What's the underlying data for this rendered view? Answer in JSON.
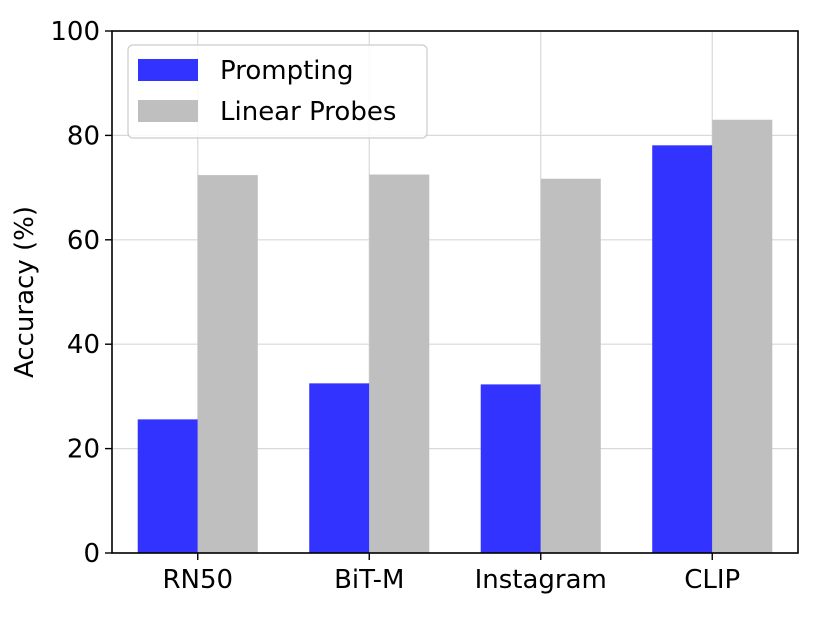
{
  "chart_data": {
    "type": "bar",
    "categories": [
      "RN50",
      "BiT-M",
      "Instagram",
      "CLIP"
    ],
    "series": [
      {
        "name": "Prompting",
        "values": [
          25.6,
          32.5,
          32.3,
          78.1
        ],
        "color": "#3333ff"
      },
      {
        "name": "Linear Probes",
        "values": [
          72.4,
          72.5,
          71.7,
          83.0
        ],
        "color": "#bfbfbf"
      }
    ],
    "ylabel": "Accuracy (%)",
    "ylim": [
      0,
      100
    ],
    "yticks": [
      "0",
      "20",
      "40",
      "60",
      "80",
      "100"
    ],
    "grid": true,
    "legend_position": "top-left"
  }
}
